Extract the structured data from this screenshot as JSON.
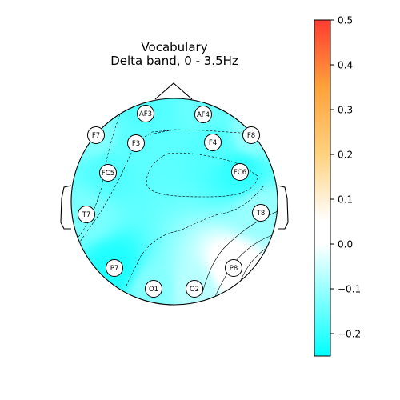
{
  "chart_data": {
    "type": "heatmap",
    "title": "Vocabulary",
    "subtitle": "Delta band, 0 - 3.5Hz",
    "colorbar": {
      "range": [
        -0.25,
        0.5
      ],
      "ticks": [
        0.5,
        0.4,
        0.3,
        0.2,
        0.1,
        0.0,
        -0.1,
        -0.2
      ],
      "tick_labels": [
        "0.5",
        "0.4",
        "0.3",
        "0.2",
        "0.1",
        "0.0",
        "−0.1",
        "−0.2"
      ],
      "colors": [
        "#00ffff",
        "#ffffff",
        "#ffd27f",
        "#ff3b30"
      ]
    },
    "electrodes": [
      {
        "label": "AF3",
        "value": -0.17
      },
      {
        "label": "AF4",
        "value": -0.15
      },
      {
        "label": "F7",
        "value": -0.12
      },
      {
        "label": "F3",
        "value": -0.16
      },
      {
        "label": "F4",
        "value": -0.17
      },
      {
        "label": "F8",
        "value": -0.11
      },
      {
        "label": "FC5",
        "value": -0.17
      },
      {
        "label": "FC6",
        "value": -0.2
      },
      {
        "label": "T7",
        "value": -0.13
      },
      {
        "label": "T8",
        "value": -0.1
      },
      {
        "label": "P7",
        "value": -0.22
      },
      {
        "label": "P8",
        "value": 0.02
      },
      {
        "label": "O1",
        "value": -0.12
      },
      {
        "label": "O2",
        "value": -0.07
      }
    ]
  }
}
